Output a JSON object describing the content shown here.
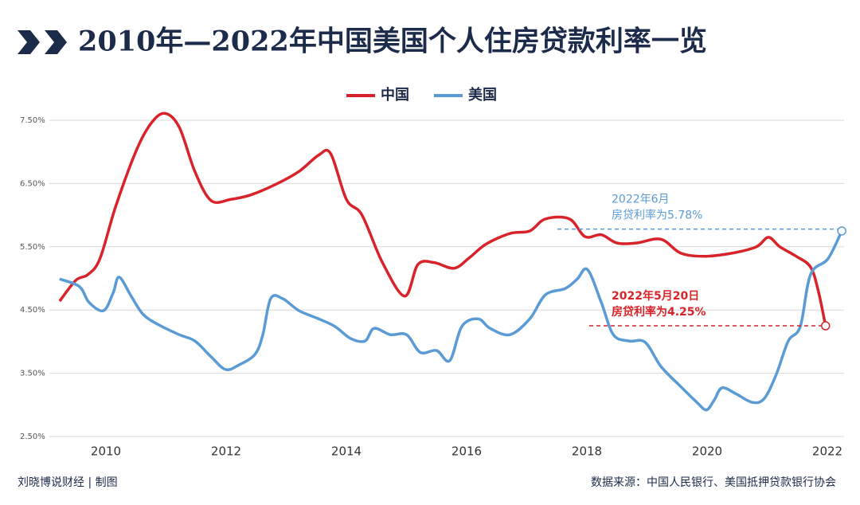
{
  "chart_data": {
    "type": "line",
    "title": "2010年—2022年中国美国个人住房贷款利率一览",
    "credit": "刘晓博说财经 | 制图",
    "source": "数据来源：中国人民银行、美国抵押贷款银行协会",
    "xlim": [
      2009.2,
      2022.4
    ],
    "xticks": [
      2010,
      2012,
      2014,
      2016,
      2018,
      2020,
      2022
    ],
    "ylim": [
      2.5,
      7.5
    ],
    "yticks": [
      {
        "value": 2.5,
        "label": "2.50%"
      },
      {
        "value": 3.5,
        "label": "3.50%"
      },
      {
        "value": 4.5,
        "label": "4.50%"
      },
      {
        "value": 5.5,
        "label": "5.50%"
      },
      {
        "value": 6.5,
        "label": "6.50%"
      },
      {
        "value": 7.5,
        "label": "7.50%"
      }
    ],
    "grid": true,
    "series": [
      {
        "name": "中国",
        "color": "#d9232a",
        "x": [
          2009.23,
          2009.5,
          2009.7,
          2009.9,
          2010.16,
          2010.5,
          2010.75,
          2010.98,
          2011.22,
          2011.48,
          2011.75,
          2012.08,
          2012.41,
          2012.81,
          2013.21,
          2013.54,
          2013.74,
          2014.0,
          2014.26,
          2014.6,
          2014.97,
          2015.19,
          2015.46,
          2015.79,
          2016.05,
          2016.32,
          2016.72,
          2017.05,
          2017.31,
          2017.71,
          2017.97,
          2018.24,
          2018.5,
          2018.83,
          2019.23,
          2019.56,
          2019.96,
          2020.42,
          2020.82,
          2021.02,
          2021.21,
          2021.48,
          2021.72,
          2021.85,
          2021.97
        ],
        "values": [
          4.64,
          4.97,
          5.06,
          5.31,
          6.13,
          7.01,
          7.45,
          7.61,
          7.39,
          6.69,
          6.23,
          6.25,
          6.32,
          6.48,
          6.69,
          6.95,
          6.97,
          6.25,
          6.0,
          5.25,
          4.72,
          5.22,
          5.25,
          5.16,
          5.33,
          5.54,
          5.71,
          5.75,
          5.94,
          5.94,
          5.66,
          5.69,
          5.56,
          5.56,
          5.62,
          5.4,
          5.35,
          5.4,
          5.5,
          5.65,
          5.5,
          5.35,
          5.18,
          4.8,
          4.25
        ]
      },
      {
        "name": "美国",
        "color": "#5b9bd5",
        "x": [
          2009.23,
          2009.56,
          2009.72,
          2009.96,
          2010.12,
          2010.22,
          2010.42,
          2010.62,
          2010.89,
          2011.22,
          2011.48,
          2011.75,
          2011.99,
          2012.21,
          2012.48,
          2012.61,
          2012.74,
          2012.94,
          2013.21,
          2013.54,
          2013.81,
          2014.07,
          2014.31,
          2014.46,
          2014.73,
          2015.0,
          2015.23,
          2015.5,
          2015.72,
          2015.92,
          2016.19,
          2016.39,
          2016.72,
          2017.05,
          2017.31,
          2017.64,
          2017.84,
          2018.01,
          2018.24,
          2018.44,
          2018.7,
          2018.97,
          2019.23,
          2019.56,
          2019.83,
          2019.99,
          2020.12,
          2020.25,
          2020.49,
          2020.75,
          2020.95,
          2021.15,
          2021.35,
          2021.55,
          2021.72,
          2022.01,
          2022.24
        ],
        "values": [
          4.99,
          4.87,
          4.62,
          4.49,
          4.77,
          5.02,
          4.72,
          4.43,
          4.26,
          4.11,
          4.01,
          3.76,
          3.56,
          3.63,
          3.8,
          4.11,
          4.68,
          4.68,
          4.49,
          4.36,
          4.24,
          4.05,
          4.01,
          4.21,
          4.11,
          4.11,
          3.83,
          3.86,
          3.7,
          4.24,
          4.36,
          4.21,
          4.11,
          4.36,
          4.74,
          4.84,
          4.99,
          5.14,
          4.62,
          4.11,
          4.01,
          3.99,
          3.61,
          3.29,
          3.04,
          2.92,
          3.08,
          3.27,
          3.17,
          3.04,
          3.1,
          3.48,
          4.01,
          4.24,
          5.06,
          5.31,
          5.75
        ]
      }
    ],
    "annotations": [
      {
        "lines": [
          "2022年6月",
          "房贷利率为5.78%"
        ],
        "value": 5.78,
        "color": "#5b9bd5"
      },
      {
        "lines": [
          "2022年5月20日",
          "房贷利率为4.25%"
        ],
        "value": 4.25,
        "color": "#d9232a"
      }
    ]
  }
}
